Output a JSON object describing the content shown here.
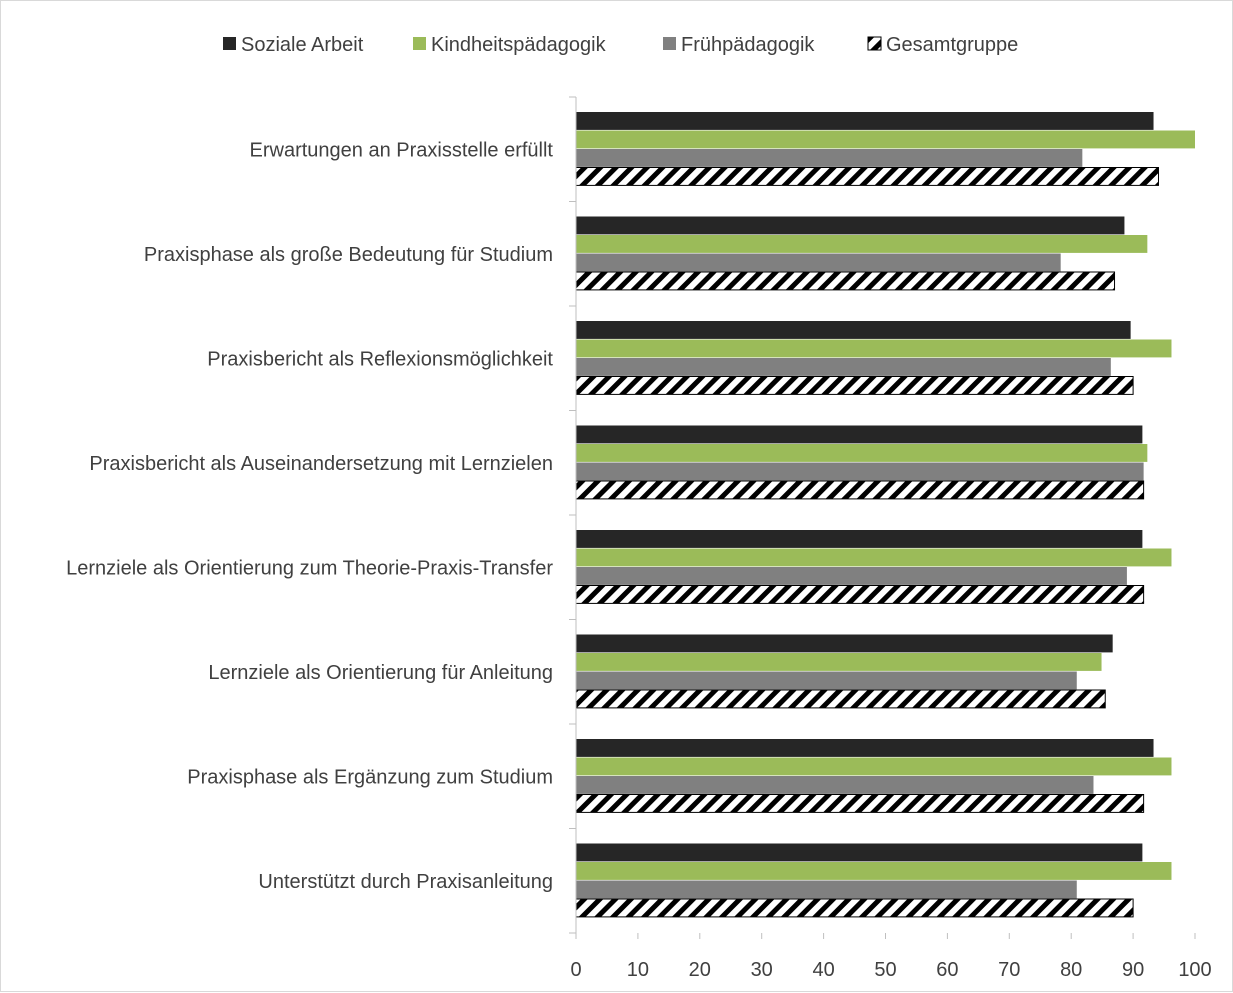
{
  "chart_data": {
    "type": "bar",
    "orientation": "horizontal",
    "title": "",
    "xlabel": "",
    "ylabel": "",
    "xlim": [
      0,
      100
    ],
    "x_ticks": [
      "0",
      "10",
      "20",
      "30",
      "40",
      "50",
      "60",
      "70",
      "80",
      "90",
      "100"
    ],
    "grid": false,
    "legend_position": "top",
    "categories": [
      "Erwartungen an Praxisstelle erfüllt",
      "Praxisphase als große Bedeutung für Studium",
      "Praxisbericht als Reflexionsmöglichkeit",
      "Praxisbericht als Auseinandersetzung mit Lernzielen",
      "Lernziele als Orientierung zum Theorie-Praxis-Transfer",
      "Lernziele als Orientierung für Anleitung",
      "Praxisphase als Ergänzung zum Studium",
      "Unterstützt durch Praxisanleitung"
    ],
    "series": [
      {
        "name": "Soziale Arbeit",
        "color": "#262626",
        "pattern": "solid",
        "values": [
          93.3,
          88.6,
          89.6,
          91.5,
          91.5,
          86.7,
          93.3,
          91.5
        ]
      },
      {
        "name": "Kindheitspädagogik",
        "color": "#9bbb59",
        "pattern": "solid",
        "values": [
          100,
          92.3,
          96.2,
          92.3,
          96.2,
          84.9,
          96.2,
          96.2
        ]
      },
      {
        "name": "Frühpädagogik",
        "color": "#808080",
        "pattern": "solid",
        "values": [
          81.8,
          78.3,
          86.4,
          91.7,
          89.0,
          80.9,
          83.6,
          80.9
        ]
      },
      {
        "name": "Gesamtgruppe",
        "color": "#000000",
        "pattern": "diagonal-hatch",
        "values": [
          94.1,
          87.0,
          90.0,
          91.7,
          91.7,
          85.5,
          91.7,
          90.0
        ]
      }
    ]
  }
}
